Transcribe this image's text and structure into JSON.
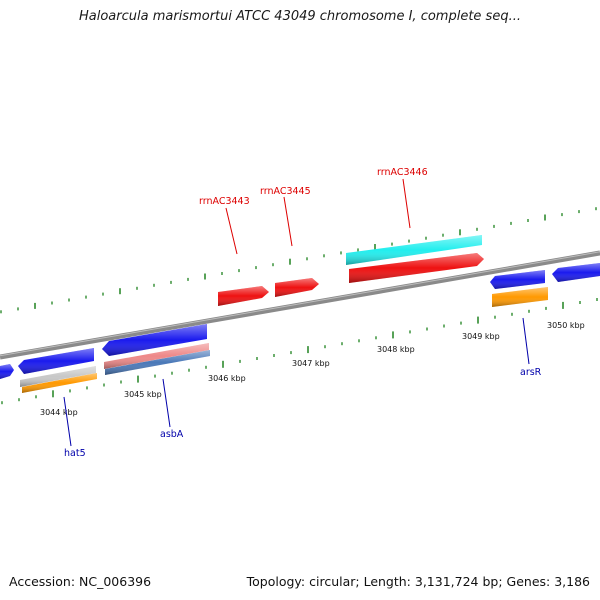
{
  "title": "Haloarcula marismortui ATCC 43049 chromosome I, complete seq...",
  "accession": "Accession: NC_006396",
  "summary": "Topology: circular; Length: 3,131,724 bp; Genes: 3,186",
  "colors": {
    "backbone": "#8a8a8a",
    "tick": "#2e8b2e",
    "rrna": "#ee1111",
    "rrna_label": "#dd0000",
    "gene_label": "#0000aa",
    "cds_blue": "#1a1aee",
    "cyan": "#22eeee",
    "orange": "#ff9900",
    "grey": "#c8c8c8",
    "pink": "#ee8888",
    "steel": "#4a78b8"
  },
  "scale_labels": [
    "3044 kbp",
    "3045 kbp",
    "3046 kbp",
    "3047 kbp",
    "3048 kbp",
    "3049 kbp",
    "3050 kbp"
  ],
  "feature_labels": {
    "rrnAC3443": "rrnAC3443",
    "rrnAC3445": "rrnAC3445",
    "rrnAC3446": "rrnAC3446",
    "hat5": "hat5",
    "asbA": "asbA",
    "arsR": "arsR"
  }
}
